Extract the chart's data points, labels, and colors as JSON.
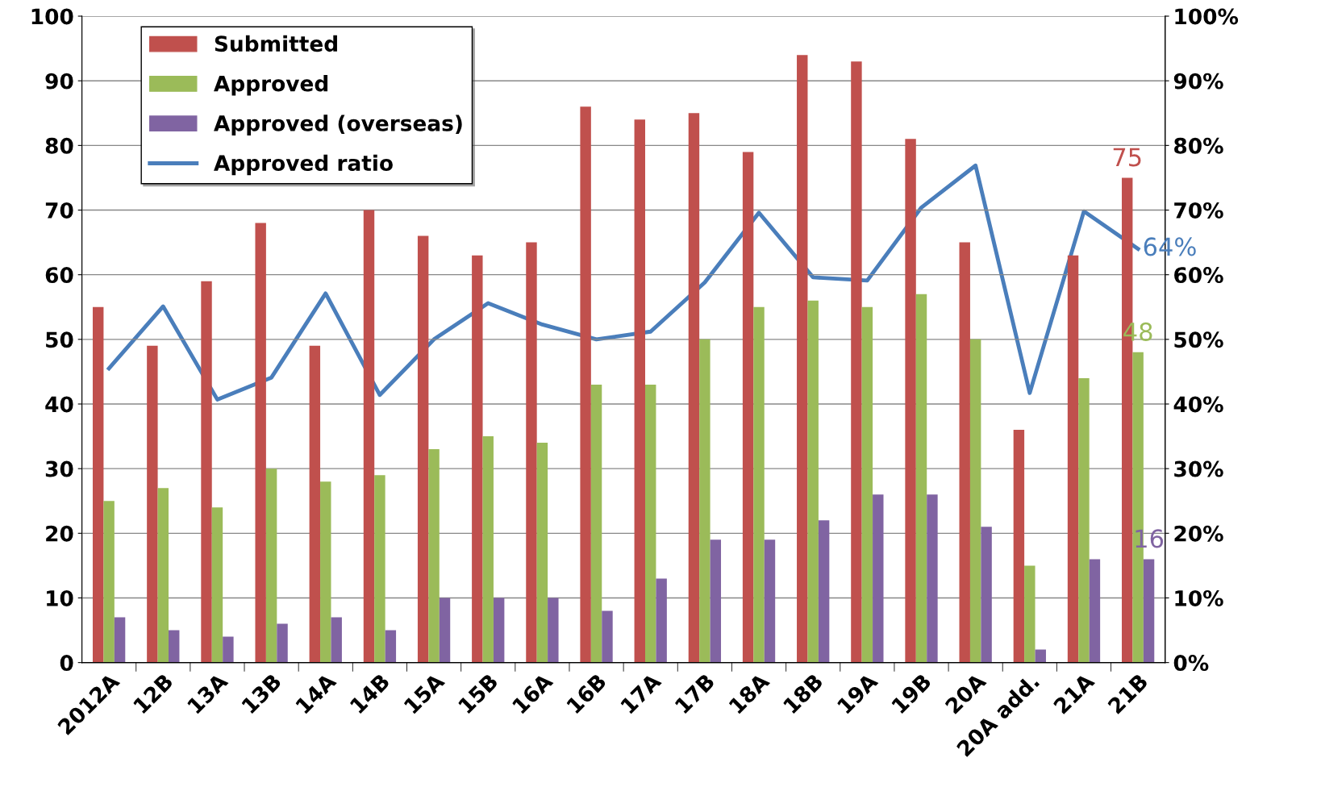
{
  "chart_data": {
    "type": "bar",
    "categories": [
      "2012A",
      "12B",
      "13A",
      "13B",
      "14A",
      "14B",
      "15A",
      "15B",
      "16A",
      "16B",
      "17A",
      "17B",
      "18A",
      "18B",
      "19A",
      "19B",
      "20A",
      "20A add.",
      "21A",
      "21B"
    ],
    "series": [
      {
        "name": "Submitted",
        "color": "#c0504d",
        "values": [
          55,
          49,
          59,
          68,
          49,
          70,
          66,
          63,
          65,
          86,
          84,
          85,
          79,
          94,
          93,
          81,
          65,
          36,
          63,
          75
        ],
        "value_labels": [
          null,
          null,
          null,
          null,
          null,
          null,
          null,
          null,
          null,
          null,
          null,
          null,
          null,
          null,
          null,
          null,
          null,
          null,
          null,
          "75"
        ]
      },
      {
        "name": "Approved",
        "color": "#9bbb59",
        "values": [
          25,
          27,
          24,
          30,
          28,
          29,
          33,
          35,
          34,
          43,
          43,
          50,
          55,
          56,
          55,
          57,
          50,
          15,
          44,
          48
        ],
        "value_labels": [
          null,
          null,
          null,
          null,
          null,
          null,
          null,
          null,
          null,
          null,
          null,
          null,
          null,
          null,
          null,
          null,
          null,
          null,
          null,
          "48"
        ]
      },
      {
        "name": "Approved (overseas)",
        "color": "#8064a2",
        "values": [
          7,
          5,
          4,
          6,
          7,
          5,
          10,
          10,
          10,
          8,
          13,
          19,
          19,
          22,
          26,
          26,
          21,
          2,
          16,
          16
        ],
        "value_labels": [
          null,
          null,
          null,
          null,
          null,
          null,
          null,
          null,
          null,
          null,
          null,
          null,
          null,
          null,
          null,
          null,
          null,
          null,
          null,
          "16"
        ]
      },
      {
        "name": "Approved ratio",
        "type": "line",
        "axis": "y2",
        "color": "#4a7ebb",
        "marker": "none",
        "line_style": "solid",
        "values": [
          45.5,
          55.1,
          40.7,
          44.1,
          57.1,
          41.4,
          50,
          55.6,
          52.3,
          50,
          51.2,
          58.8,
          69.6,
          59.6,
          59.1,
          70.4,
          76.9,
          41.7,
          69.8,
          64
        ],
        "value_labels": [
          null,
          null,
          null,
          null,
          null,
          null,
          null,
          null,
          null,
          null,
          null,
          null,
          null,
          null,
          null,
          null,
          null,
          null,
          null,
          "64%"
        ]
      }
    ],
    "ylim": [
      0,
      100
    ],
    "yticks": [
      0,
      10,
      20,
      30,
      40,
      50,
      60,
      70,
      80,
      90,
      100
    ],
    "y2lim": [
      0,
      100
    ],
    "y2ticks": [
      {
        "value": 0,
        "label": "0%"
      },
      {
        "value": 10,
        "label": "10%"
      },
      {
        "value": 20,
        "label": "20%"
      },
      {
        "value": 30,
        "label": "30%"
      },
      {
        "value": 40,
        "label": "40%"
      },
      {
        "value": 50,
        "label": "50%"
      },
      {
        "value": 60,
        "label": "60%"
      },
      {
        "value": 70,
        "label": "70%"
      },
      {
        "value": 80,
        "label": "80%"
      },
      {
        "value": 90,
        "label": "90%"
      },
      {
        "value": 100,
        "label": "100%"
      }
    ],
    "grid": "y",
    "legend": "top left"
  }
}
